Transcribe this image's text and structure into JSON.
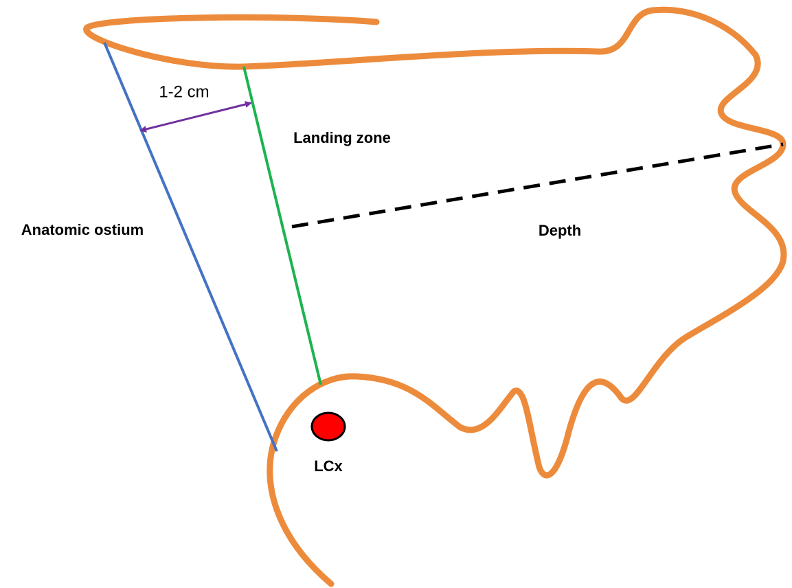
{
  "labels": {
    "distance": "1-2 cm",
    "landing_zone": "Landing zone",
    "anatomic_ostium": "Anatomic ostium",
    "depth": "Depth",
    "lcx": "LCx"
  }
}
